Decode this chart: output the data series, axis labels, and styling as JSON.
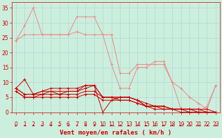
{
  "background_color": "#cceedd",
  "grid_color": "#aacccc",
  "xlabel": "Vent moyen/en rafales ( km/h )",
  "xlabel_color": "#cc0000",
  "xlabel_fontsize": 6.5,
  "tick_color": "#cc0000",
  "tick_fontsize": 5.5,
  "xlim": [
    -0.5,
    23.5
  ],
  "ylim": [
    0,
    37
  ],
  "yticks": [
    0,
    5,
    10,
    15,
    20,
    25,
    30,
    35
  ],
  "xticks": [
    0,
    1,
    2,
    3,
    4,
    5,
    6,
    7,
    8,
    9,
    10,
    11,
    12,
    13,
    14,
    15,
    16,
    17,
    18,
    19,
    20,
    21,
    22,
    23
  ],
  "lines_dark": [
    {
      "x": [
        0,
        1,
        2,
        3,
        4,
        5,
        6,
        7,
        8,
        9,
        10,
        11,
        12,
        13,
        14,
        15,
        16,
        17,
        18,
        19,
        20,
        21,
        22,
        23
      ],
      "y": [
        8,
        6,
        6,
        7,
        8,
        8,
        8,
        8,
        9,
        9,
        5,
        5,
        5,
        5,
        4,
        2,
        2,
        2,
        1,
        1,
        1,
        1,
        1,
        0
      ]
    },
    {
      "x": [
        0,
        1,
        2,
        3,
        4,
        5,
        6,
        7,
        8,
        9,
        10,
        11,
        12,
        13,
        14,
        15,
        16,
        17,
        18,
        19,
        20,
        21,
        22,
        23
      ],
      "y": [
        8,
        6,
        6,
        7,
        7,
        7,
        7,
        7,
        8,
        9,
        0,
        4,
        5,
        5,
        4,
        3,
        2,
        2,
        1,
        1,
        1,
        0,
        0,
        0
      ]
    },
    {
      "x": [
        0,
        1,
        2,
        3,
        4,
        5,
        6,
        7,
        8,
        9,
        10,
        11,
        12,
        13,
        14,
        15,
        16,
        17,
        18,
        19,
        20,
        21,
        22,
        23
      ],
      "y": [
        8,
        11,
        6,
        6,
        7,
        6,
        7,
        7,
        9,
        9,
        5,
        5,
        5,
        5,
        4,
        2,
        2,
        2,
        1,
        1,
        1,
        1,
        0,
        0
      ]
    },
    {
      "x": [
        0,
        1,
        2,
        3,
        4,
        5,
        6,
        7,
        8,
        9,
        10,
        11,
        12,
        13,
        14,
        15,
        16,
        17,
        18,
        19,
        20,
        21,
        22,
        23
      ],
      "y": [
        7,
        5,
        5,
        6,
        6,
        6,
        6,
        6,
        7,
        7,
        5,
        5,
        4,
        4,
        3,
        2,
        2,
        1,
        1,
        1,
        0,
        0,
        0,
        0
      ]
    },
    {
      "x": [
        0,
        1,
        2,
        3,
        4,
        5,
        6,
        7,
        8,
        9,
        10,
        11,
        12,
        13,
        14,
        15,
        16,
        17,
        18,
        19,
        20,
        21,
        22,
        23
      ],
      "y": [
        7,
        5,
        5,
        5,
        5,
        5,
        5,
        5,
        6,
        6,
        4,
        4,
        4,
        4,
        3,
        2,
        1,
        1,
        1,
        0,
        0,
        0,
        0,
        0
      ]
    }
  ],
  "lines_light": [
    {
      "x": [
        0,
        1,
        2,
        3,
        4,
        5,
        6,
        7,
        8,
        9,
        10,
        11,
        12,
        13,
        14,
        15,
        16,
        17,
        18,
        19,
        20,
        21,
        22,
        23
      ],
      "y": [
        24,
        26,
        26,
        26,
        26,
        26,
        26,
        27,
        26,
        26,
        26,
        26,
        13,
        13,
        16,
        16,
        16,
        16,
        10,
        8,
        5,
        3,
        1,
        9
      ]
    },
    {
      "x": [
        0,
        1,
        2,
        3,
        4,
        5,
        6,
        7,
        8,
        9,
        10,
        11,
        12,
        13,
        14,
        15,
        16,
        17,
        18,
        19,
        20,
        21,
        22,
        23
      ],
      "y": [
        24,
        29,
        35,
        26,
        26,
        26,
        26,
        32,
        32,
        32,
        26,
        16,
        8,
        8,
        15,
        15,
        17,
        17,
        10,
        1,
        1,
        0,
        2,
        9
      ]
    }
  ],
  "dark_line_color": "#cc0000",
  "light_line_color": "#ee8888",
  "arrow_color": "#cc0000"
}
